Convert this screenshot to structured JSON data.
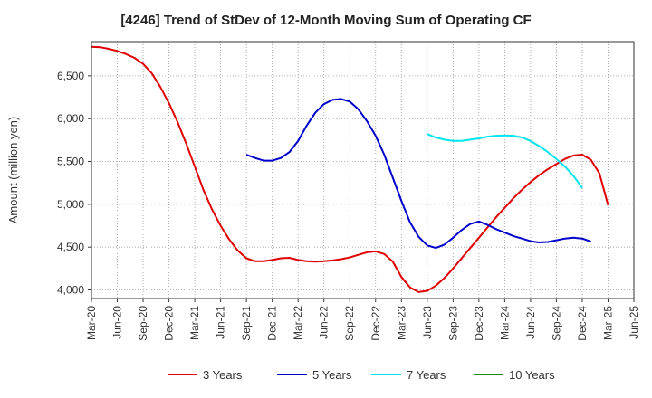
{
  "chart_data": {
    "type": "line",
    "title": "[4246]  Trend of StDev of 12-Month Moving Sum of Operating CF",
    "ylabel": "Amount (million yen)",
    "xlabel": "",
    "x_start": "2020-03",
    "x_tick_labels": [
      "Mar-20",
      "Jun-20",
      "Sep-20",
      "Dec-20",
      "Mar-21",
      "Jun-21",
      "Sep-21",
      "Dec-21",
      "Mar-22",
      "Jun-22",
      "Sep-22",
      "Dec-22",
      "Mar-23",
      "Jun-23",
      "Sep-23",
      "Dec-23",
      "Mar-24",
      "Jun-24",
      "Sep-24",
      "Dec-24",
      "Mar-25",
      "Jun-25"
    ],
    "y_ticks": [
      4000,
      4500,
      5000,
      5500,
      6000,
      6500
    ],
    "y_tick_labels": [
      "4,000",
      "4,500",
      "5,000",
      "5,500",
      "6,000",
      "6,500"
    ],
    "ylim": [
      3900,
      6900
    ],
    "grid": true,
    "legend_position": "bottom",
    "series": [
      {
        "name": "3 Years",
        "color": "#e00000",
        "values": [
          [
            "2020-03",
            6840
          ],
          [
            "2020-04",
            6835
          ],
          [
            "2020-05",
            6815
          ],
          [
            "2020-06",
            6790
          ],
          [
            "2020-07",
            6755
          ],
          [
            "2020-08",
            6710
          ],
          [
            "2020-09",
            6640
          ],
          [
            "2020-10",
            6530
          ],
          [
            "2020-11",
            6370
          ],
          [
            "2020-12",
            6180
          ],
          [
            "2021-01",
            5960
          ],
          [
            "2021-02",
            5710
          ],
          [
            "2021-03",
            5440
          ],
          [
            "2021-04",
            5170
          ],
          [
            "2021-05",
            4940
          ],
          [
            "2021-06",
            4750
          ],
          [
            "2021-07",
            4590
          ],
          [
            "2021-08",
            4460
          ],
          [
            "2021-09",
            4370
          ],
          [
            "2021-10",
            4335
          ],
          [
            "2021-11",
            4335
          ],
          [
            "2021-12",
            4350
          ],
          [
            "2022-01",
            4370
          ],
          [
            "2022-02",
            4375
          ],
          [
            "2022-03",
            4350
          ],
          [
            "2022-04",
            4335
          ],
          [
            "2022-05",
            4330
          ],
          [
            "2022-06",
            4335
          ],
          [
            "2022-07",
            4345
          ],
          [
            "2022-08",
            4360
          ],
          [
            "2022-09",
            4380
          ],
          [
            "2022-10",
            4410
          ],
          [
            "2022-11",
            4440
          ],
          [
            "2022-12",
            4450
          ],
          [
            "2023-01",
            4420
          ],
          [
            "2023-02",
            4330
          ],
          [
            "2023-03",
            4150
          ],
          [
            "2023-04",
            4030
          ],
          [
            "2023-05",
            3975
          ],
          [
            "2023-06",
            3990
          ],
          [
            "2023-07",
            4050
          ],
          [
            "2023-08",
            4140
          ],
          [
            "2023-09",
            4250
          ],
          [
            "2023-10",
            4370
          ],
          [
            "2023-11",
            4490
          ],
          [
            "2023-12",
            4610
          ],
          [
            "2024-01",
            4730
          ],
          [
            "2024-02",
            4850
          ],
          [
            "2024-03",
            4960
          ],
          [
            "2024-04",
            5070
          ],
          [
            "2024-05",
            5170
          ],
          [
            "2024-06",
            5260
          ],
          [
            "2024-07",
            5340
          ],
          [
            "2024-08",
            5410
          ],
          [
            "2024-09",
            5470
          ],
          [
            "2024-10",
            5530
          ],
          [
            "2024-11",
            5570
          ],
          [
            "2024-12",
            5580
          ],
          [
            "2025-01",
            5520
          ],
          [
            "2025-02",
            5360
          ],
          [
            "2025-03",
            4990
          ]
        ]
      },
      {
        "name": "5 Years",
        "color": "#0000cc",
        "values": [
          [
            "2021-09",
            5580
          ],
          [
            "2021-10",
            5540
          ],
          [
            "2021-11",
            5510
          ],
          [
            "2021-12",
            5510
          ],
          [
            "2022-01",
            5540
          ],
          [
            "2022-02",
            5610
          ],
          [
            "2022-03",
            5740
          ],
          [
            "2022-04",
            5920
          ],
          [
            "2022-05",
            6070
          ],
          [
            "2022-06",
            6170
          ],
          [
            "2022-07",
            6220
          ],
          [
            "2022-08",
            6230
          ],
          [
            "2022-09",
            6200
          ],
          [
            "2022-10",
            6110
          ],
          [
            "2022-11",
            5970
          ],
          [
            "2022-12",
            5800
          ],
          [
            "2023-01",
            5580
          ],
          [
            "2023-02",
            5310
          ],
          [
            "2023-03",
            5040
          ],
          [
            "2023-04",
            4790
          ],
          [
            "2023-05",
            4620
          ],
          [
            "2023-06",
            4520
          ],
          [
            "2023-07",
            4490
          ],
          [
            "2023-08",
            4530
          ],
          [
            "2023-09",
            4610
          ],
          [
            "2023-10",
            4700
          ],
          [
            "2023-11",
            4770
          ],
          [
            "2023-12",
            4800
          ],
          [
            "2024-01",
            4760
          ],
          [
            "2024-02",
            4710
          ],
          [
            "2024-03",
            4670
          ],
          [
            "2024-04",
            4630
          ],
          [
            "2024-05",
            4600
          ],
          [
            "2024-06",
            4570
          ],
          [
            "2024-07",
            4555
          ],
          [
            "2024-08",
            4560
          ],
          [
            "2024-09",
            4580
          ],
          [
            "2024-10",
            4600
          ],
          [
            "2024-11",
            4610
          ],
          [
            "2024-12",
            4600
          ],
          [
            "2025-01",
            4565
          ]
        ]
      },
      {
        "name": "7 Years",
        "color": "#00e5ee",
        "values": [
          [
            "2023-06",
            5820
          ],
          [
            "2023-07",
            5780
          ],
          [
            "2023-08",
            5755
          ],
          [
            "2023-09",
            5740
          ],
          [
            "2023-10",
            5740
          ],
          [
            "2023-11",
            5755
          ],
          [
            "2023-12",
            5770
          ],
          [
            "2024-01",
            5790
          ],
          [
            "2024-02",
            5800
          ],
          [
            "2024-03",
            5805
          ],
          [
            "2024-04",
            5800
          ],
          [
            "2024-05",
            5780
          ],
          [
            "2024-06",
            5740
          ],
          [
            "2024-07",
            5680
          ],
          [
            "2024-08",
            5610
          ],
          [
            "2024-09",
            5530
          ],
          [
            "2024-10",
            5440
          ],
          [
            "2024-11",
            5330
          ],
          [
            "2024-12",
            5190
          ]
        ]
      },
      {
        "name": "10 Years",
        "color": "#228b22",
        "values": []
      }
    ]
  }
}
